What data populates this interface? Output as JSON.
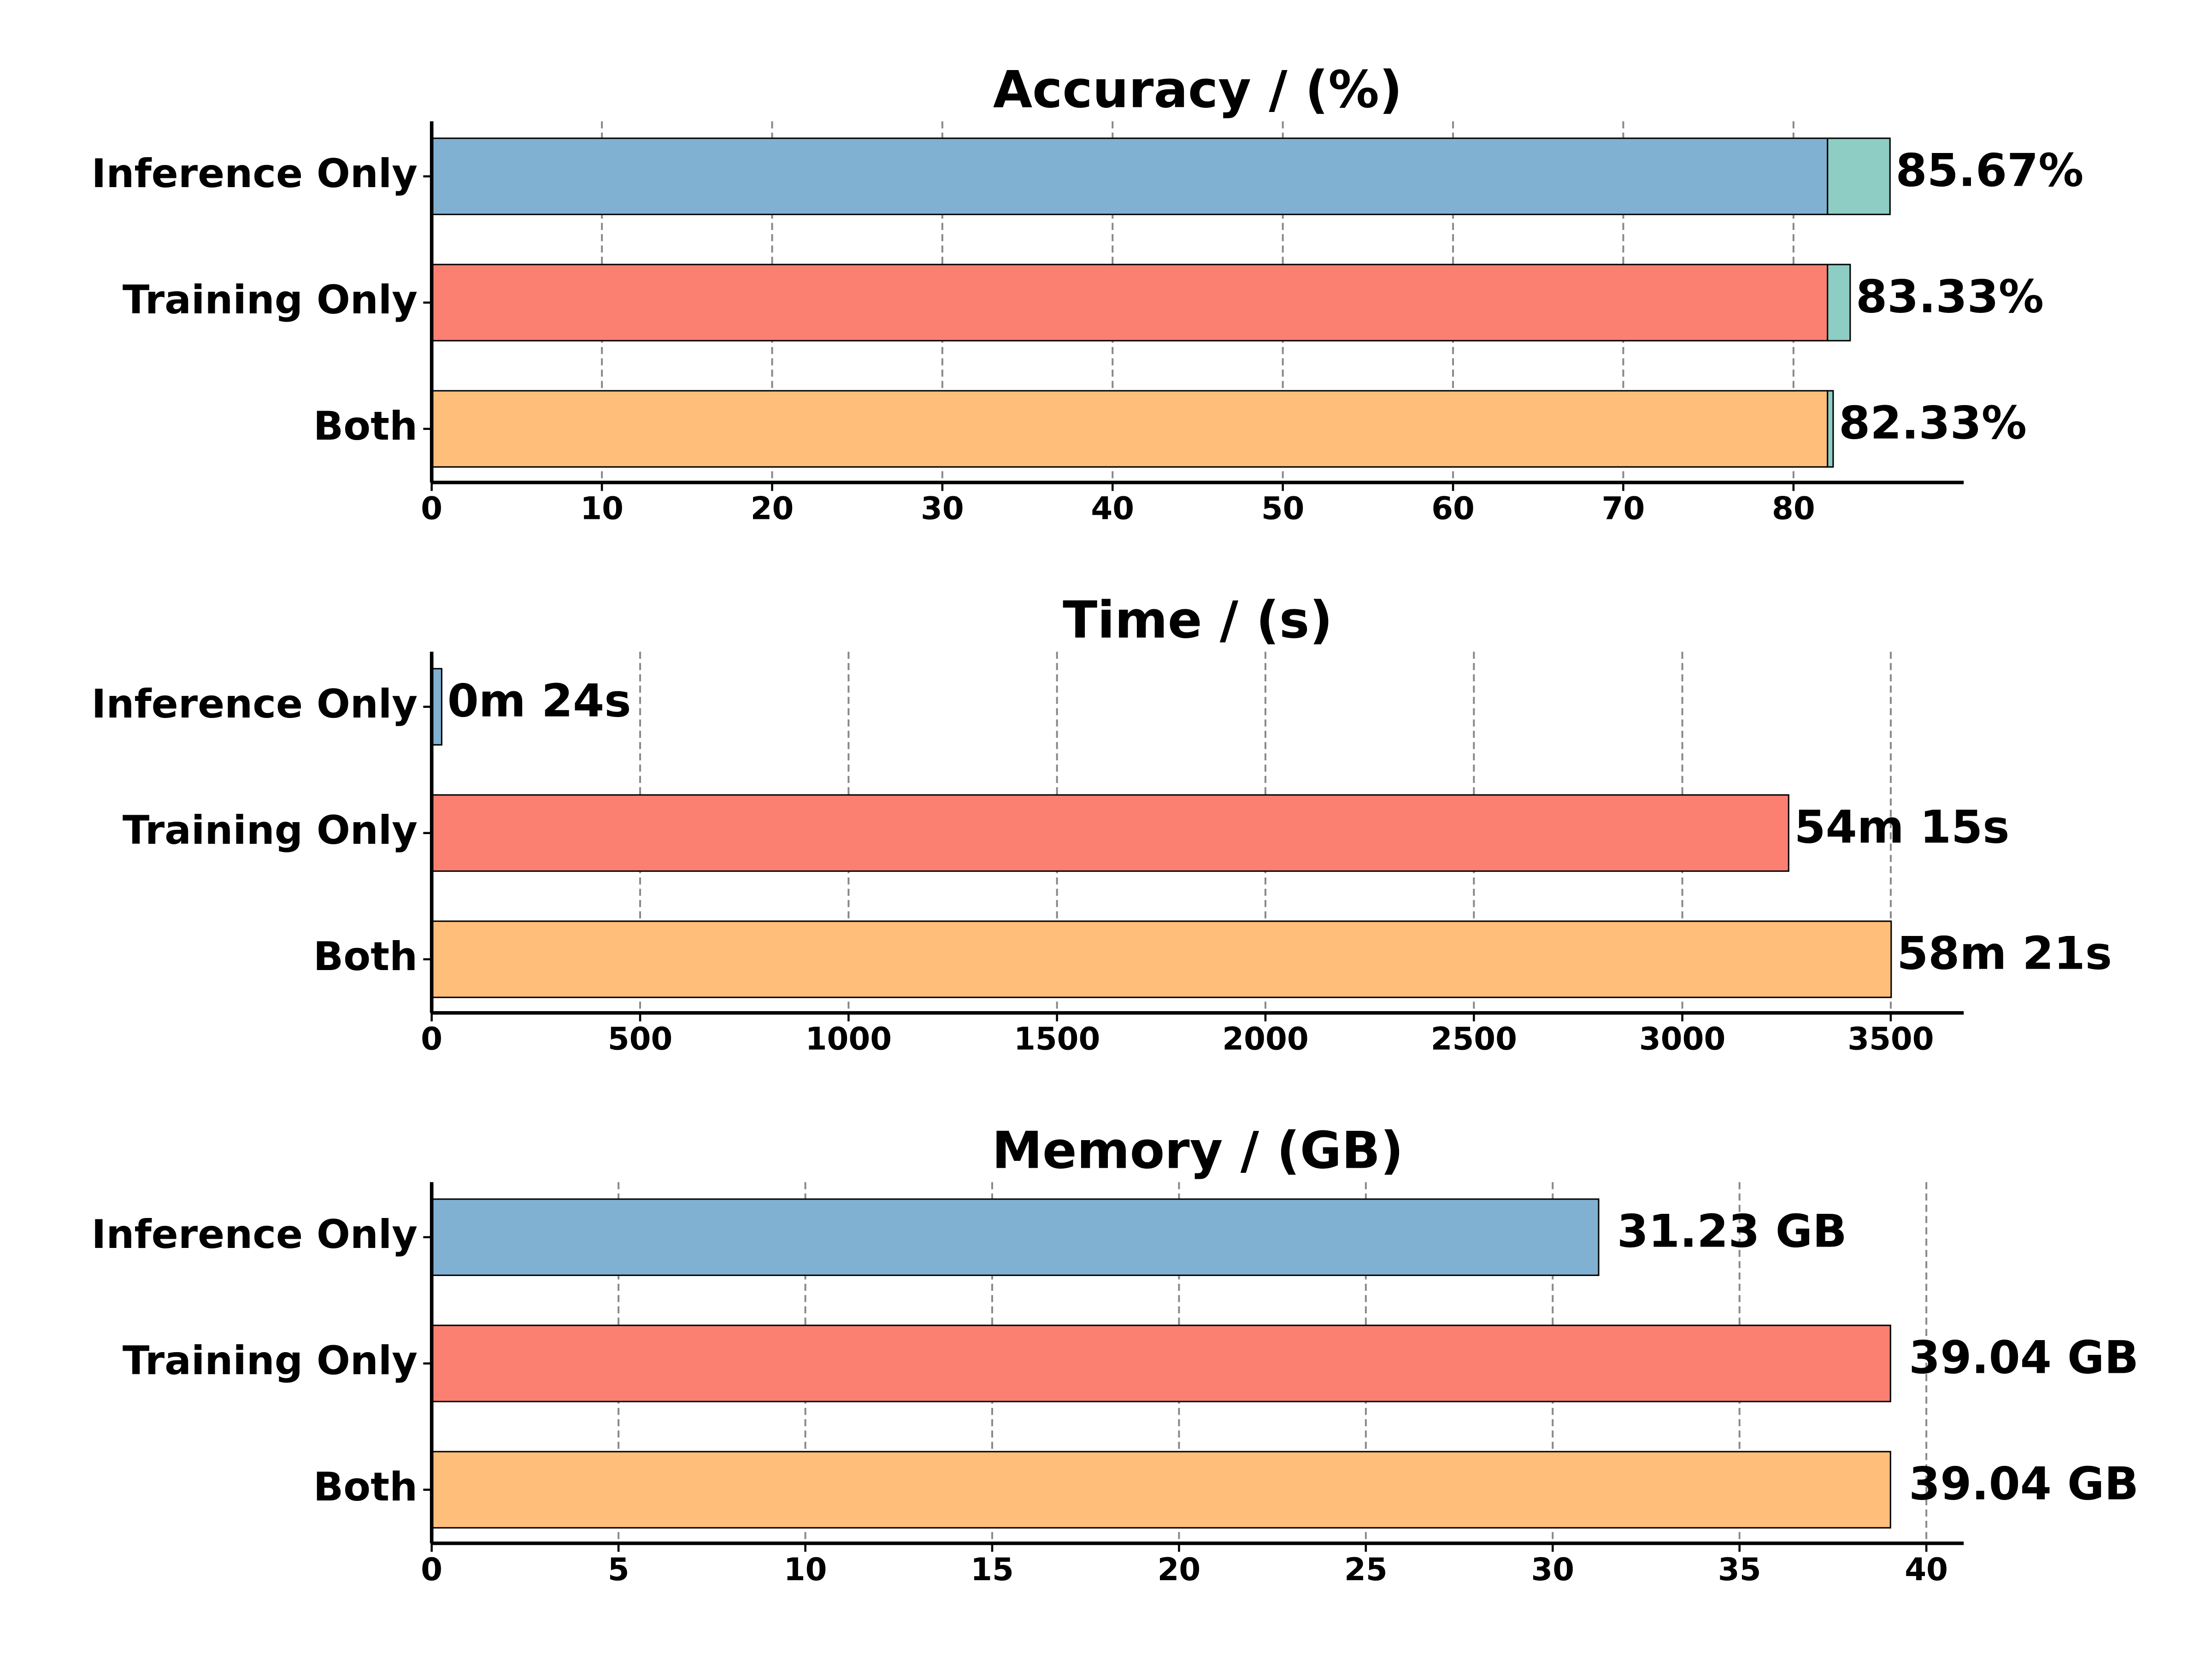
{
  "chart_data": [
    {
      "type": "bar",
      "orientation": "horizontal",
      "title": "Accuracy / (%)",
      "categories": [
        "Inference Only",
        "Training Only",
        "Both"
      ],
      "base_values": [
        82,
        82,
        82
      ],
      "values": [
        85.67,
        83.33,
        82.33
      ],
      "value_labels": [
        "85.67%",
        "83.33%",
        "82.33%"
      ],
      "colors": [
        "#80b1d3",
        "#fb8072",
        "#ffbf7a"
      ],
      "total_color": "#8dcdc3",
      "xlim": [
        0,
        90
      ],
      "xticks": [
        0,
        10,
        20,
        30,
        40,
        50,
        60,
        70,
        80
      ],
      "grid": true
    },
    {
      "type": "bar",
      "orientation": "horizontal",
      "title": "Time / (s)",
      "categories": [
        "Inference Only",
        "Training Only",
        "Both"
      ],
      "values": [
        24,
        3255,
        3501
      ],
      "value_labels": [
        "0m 24s",
        "54m 15s",
        "58m 21s"
      ],
      "colors": [
        "#80b1d3",
        "#fb8072",
        "#ffbf7a"
      ],
      "xlim": [
        0,
        3675
      ],
      "xticks": [
        0,
        500,
        1000,
        1500,
        2000,
        2500,
        3000,
        3500
      ],
      "grid": true
    },
    {
      "type": "bar",
      "orientation": "horizontal",
      "title": "Memory / (GB)",
      "categories": [
        "Inference Only",
        "Training Only",
        "Both"
      ],
      "values": [
        31.23,
        39.04,
        39.04
      ],
      "value_labels": [
        "31.23 GB",
        "39.04 GB",
        "39.04 GB"
      ],
      "colors": [
        "#80b1d3",
        "#fb8072",
        "#ffbf7a"
      ],
      "xlim": [
        0,
        41
      ],
      "xticks": [
        0,
        5,
        10,
        15,
        20,
        25,
        30,
        35,
        40
      ],
      "grid": true
    }
  ]
}
